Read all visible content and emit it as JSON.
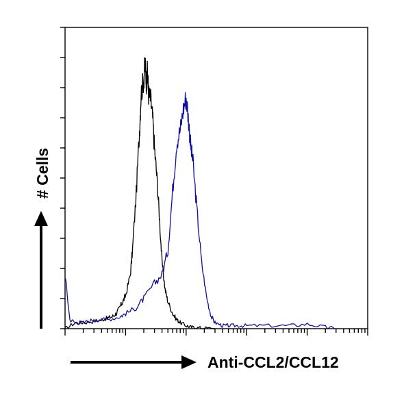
{
  "chart_data": {
    "type": "line",
    "title": "",
    "xlabel": "Anti-CCL2/CCL12",
    "ylabel": "# Cells",
    "x_scale": "log",
    "xlim": [
      1,
      100000
    ],
    "ylim": [
      0,
      100
    ],
    "grid": false,
    "legend": "none",
    "series": [
      {
        "color": "#000000",
        "x": [
          1,
          1.5,
          2,
          3,
          4,
          5,
          6,
          7,
          8,
          9,
          10,
          12,
          13,
          15,
          17,
          18,
          20,
          21,
          22,
          23,
          24,
          26,
          28,
          30,
          33,
          36,
          40,
          45,
          50,
          60,
          70,
          80,
          100,
          120,
          150,
          200,
          300
        ],
        "y": [
          0,
          2,
          2,
          2.5,
          3,
          3.5,
          4,
          5,
          7,
          9,
          11,
          18,
          26,
          45,
          66,
          78,
          83,
          88,
          82,
          85,
          78,
          76,
          70,
          60,
          50,
          38,
          22,
          13,
          9,
          5,
          3,
          2,
          1,
          0.5,
          0.3,
          0.2,
          0
        ]
      },
      {
        "color": "#0f0fa0",
        "x": [
          1,
          1.2,
          1.5,
          2,
          3,
          5,
          8,
          10,
          15,
          20,
          30,
          40,
          50,
          60,
          70,
          80,
          90,
          100,
          110,
          120,
          130,
          150,
          180,
          220,
          260,
          300,
          400,
          500,
          700,
          1000,
          2000,
          5000,
          10000,
          20000,
          30000
        ],
        "y": [
          18,
          3,
          2,
          2,
          3,
          3,
          4,
          5,
          7,
          10,
          15,
          18,
          26,
          46,
          62,
          66,
          73,
          77,
          69,
          60,
          55,
          40,
          22,
          10,
          4,
          2,
          1,
          1,
          1,
          1,
          1,
          1,
          1.5,
          0.5,
          0
        ]
      }
    ]
  }
}
